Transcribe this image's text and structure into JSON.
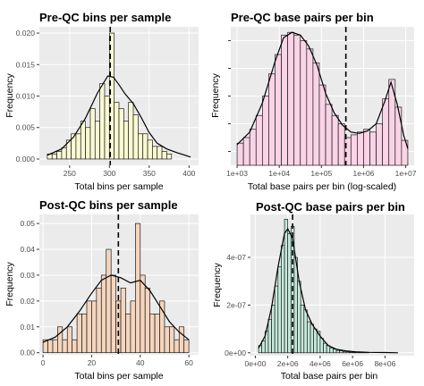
{
  "colors": {
    "panel_bg": "#ebebeb",
    "grid_major": "#ffffff",
    "bar_stroke": "#1a1a1a",
    "density": "#000000",
    "mean_line": "#000000"
  },
  "chart_data": [
    {
      "type": "histogram",
      "title": "Pre-QC bins per sample",
      "xlabel": "Total bins per sample",
      "ylabel": "Frequency",
      "fill": "#fafad2",
      "xscale": "linear",
      "xlim": [
        212,
        412
      ],
      "ylim": [
        -0.001,
        0.021
      ],
      "xticks": [
        250,
        300,
        350,
        400
      ],
      "xtick_labels": [
        "250",
        "300",
        "350",
        "400"
      ],
      "yticks": [
        0,
        0.005,
        0.01,
        0.015,
        0.02
      ],
      "ytick_labels": [
        "0.000",
        "0.005",
        "0.010",
        "0.015",
        "0.020"
      ],
      "mean_line_x": 301,
      "bins": [
        [
          222,
          228,
          0.0008
        ],
        [
          228,
          234,
          0.0008
        ],
        [
          234,
          240,
          0.0012
        ],
        [
          240,
          246,
          0.0018
        ],
        [
          246,
          252,
          0.003
        ],
        [
          252,
          258,
          0.004
        ],
        [
          258,
          264,
          0.004
        ],
        [
          264,
          270,
          0.006
        ],
        [
          270,
          276,
          0.005
        ],
        [
          276,
          282,
          0.008
        ],
        [
          282,
          288,
          0.006
        ],
        [
          288,
          294,
          0.012
        ],
        [
          294,
          300,
          0.01
        ],
        [
          300,
          306,
          0.02
        ],
        [
          306,
          312,
          0.009
        ],
        [
          312,
          318,
          0.008
        ],
        [
          318,
          324,
          0.006
        ],
        [
          324,
          330,
          0.009
        ],
        [
          330,
          336,
          0.007
        ],
        [
          336,
          342,
          0.004
        ],
        [
          342,
          348,
          0.004
        ],
        [
          348,
          354,
          0.003
        ],
        [
          354,
          360,
          0.002
        ],
        [
          360,
          366,
          0.002
        ],
        [
          366,
          372,
          0.0012
        ],
        [
          372,
          378,
          0.0008
        ]
      ],
      "density": [
        [
          222,
          0.0006
        ],
        [
          240,
          0.0016
        ],
        [
          255,
          0.0035
        ],
        [
          270,
          0.0065
        ],
        [
          285,
          0.0105
        ],
        [
          298,
          0.0132
        ],
        [
          305,
          0.013
        ],
        [
          312,
          0.0118
        ],
        [
          320,
          0.0103
        ],
        [
          330,
          0.0088
        ],
        [
          340,
          0.0066
        ],
        [
          350,
          0.0042
        ],
        [
          360,
          0.0025
        ],
        [
          372,
          0.0016
        ],
        [
          385,
          0.001
        ],
        [
          395,
          0.0006
        ],
        [
          402,
          0.0003
        ]
      ]
    },
    {
      "type": "histogram",
      "title": "Pre-QC base pairs per bin",
      "xlabel": "Total base pairs per bin (log-scaled)",
      "ylabel": "Frequency",
      "fill": "#fad3e6",
      "xscale": "log10",
      "xlim": [
        2.85,
        7.2
      ],
      "ylim": [
        0,
        1
      ],
      "xticks": [
        3,
        4,
        5,
        6,
        7
      ],
      "xtick_labels": [
        "1e+03",
        "1e+04",
        "1e+05",
        "1e+06",
        "1e+07"
      ],
      "yticks": [
        0.1,
        0.3,
        0.5,
        0.7,
        0.9
      ],
      "ytick_labels": [
        "",
        "",
        "",
        "",
        ""
      ],
      "mean_line_x": 5.58,
      "bins": [
        [
          3.0,
          3.15,
          0.16
        ],
        [
          3.15,
          3.3,
          0.2
        ],
        [
          3.3,
          3.45,
          0.26
        ],
        [
          3.45,
          3.6,
          0.36
        ],
        [
          3.6,
          3.75,
          0.5
        ],
        [
          3.75,
          3.9,
          0.66
        ],
        [
          3.9,
          4.05,
          0.8
        ],
        [
          4.05,
          4.2,
          0.94
        ],
        [
          4.2,
          4.35,
          0.96
        ],
        [
          4.35,
          4.5,
          0.94
        ],
        [
          4.5,
          4.65,
          0.9
        ],
        [
          4.65,
          4.8,
          0.84
        ],
        [
          4.8,
          4.95,
          0.74
        ],
        [
          4.95,
          5.1,
          0.58
        ],
        [
          5.1,
          5.25,
          0.44
        ],
        [
          5.25,
          5.4,
          0.36
        ],
        [
          5.4,
          5.55,
          0.3
        ],
        [
          5.55,
          5.7,
          0.2
        ],
        [
          5.7,
          5.85,
          0.22
        ],
        [
          5.85,
          6.0,
          0.24
        ],
        [
          6.0,
          6.15,
          0.26
        ],
        [
          6.15,
          6.3,
          0.24
        ],
        [
          6.3,
          6.45,
          0.3
        ],
        [
          6.45,
          6.6,
          0.48
        ],
        [
          6.6,
          6.75,
          0.62
        ],
        [
          6.75,
          6.9,
          0.42
        ],
        [
          6.9,
          7.05,
          0.18
        ]
      ],
      "density": [
        [
          3.0,
          0.15
        ],
        [
          3.3,
          0.24
        ],
        [
          3.6,
          0.45
        ],
        [
          3.9,
          0.75
        ],
        [
          4.1,
          0.92
        ],
        [
          4.3,
          0.96
        ],
        [
          4.5,
          0.94
        ],
        [
          4.7,
          0.86
        ],
        [
          4.9,
          0.72
        ],
        [
          5.1,
          0.52
        ],
        [
          5.3,
          0.38
        ],
        [
          5.5,
          0.29
        ],
        [
          5.7,
          0.24
        ],
        [
          5.9,
          0.23
        ],
        [
          6.1,
          0.25
        ],
        [
          6.3,
          0.3
        ],
        [
          6.5,
          0.46
        ],
        [
          6.65,
          0.6
        ],
        [
          6.8,
          0.44
        ],
        [
          6.95,
          0.22
        ],
        [
          7.05,
          0.12
        ]
      ]
    },
    {
      "type": "histogram",
      "title": "Post-QC bins per sample",
      "xlabel": "Total bins per sample",
      "ylabel": "Frequency",
      "fill": "#f5d5bd",
      "xscale": "linear",
      "xlim": [
        -1.5,
        64
      ],
      "ylim": [
        -0.0008,
        0.0535
      ],
      "xticks": [
        0,
        20,
        40,
        60
      ],
      "xtick_labels": [
        "0",
        "20",
        "40",
        "60"
      ],
      "yticks": [
        0,
        0.01,
        0.02,
        0.03,
        0.04,
        0.05
      ],
      "ytick_labels": [
        "0.00",
        "0.01",
        "0.02",
        "0.03",
        "0.04",
        "0.05"
      ],
      "mean_line_x": 31,
      "bins": [
        [
          0,
          2,
          0.005
        ],
        [
          2,
          4,
          0.005
        ],
        [
          4,
          6,
          0.005
        ],
        [
          6,
          8,
          0.01
        ],
        [
          8,
          10,
          0.005
        ],
        [
          10,
          12,
          0.01
        ],
        [
          12,
          14,
          0.005
        ],
        [
          14,
          16,
          0.015
        ],
        [
          16,
          18,
          0.015
        ],
        [
          18,
          20,
          0.02
        ],
        [
          20,
          22,
          0.02
        ],
        [
          22,
          24,
          0.025
        ],
        [
          24,
          26,
          0.03
        ],
        [
          26,
          28,
          0.04
        ],
        [
          28,
          30,
          0.03
        ],
        [
          30,
          32,
          0.02
        ],
        [
          32,
          34,
          0.025
        ],
        [
          34,
          36,
          0.015
        ],
        [
          36,
          38,
          0.02
        ],
        [
          38,
          40,
          0.05
        ],
        [
          40,
          42,
          0.03
        ],
        [
          42,
          44,
          0.025
        ],
        [
          44,
          46,
          0.015
        ],
        [
          46,
          48,
          0.015
        ],
        [
          48,
          50,
          0.02
        ],
        [
          50,
          52,
          0.01
        ],
        [
          52,
          54,
          0.01
        ],
        [
          54,
          56,
          0.005
        ],
        [
          56,
          58,
          0.01
        ],
        [
          58,
          60,
          0.005
        ]
      ],
      "density": [
        [
          0,
          0.004
        ],
        [
          5,
          0.006
        ],
        [
          10,
          0.01
        ],
        [
          15,
          0.016
        ],
        [
          20,
          0.023
        ],
        [
          24,
          0.028
        ],
        [
          28,
          0.03
        ],
        [
          32,
          0.029
        ],
        [
          36,
          0.027
        ],
        [
          40,
          0.028
        ],
        [
          44,
          0.024
        ],
        [
          48,
          0.018
        ],
        [
          52,
          0.012
        ],
        [
          56,
          0.008
        ],
        [
          60,
          0.005
        ]
      ]
    },
    {
      "type": "histogram",
      "title": "Post-QC base pairs per bin",
      "xlabel": "Total base pairs per bin",
      "ylabel": "Frequency",
      "fill": "#c6ebdd",
      "xscale": "linear",
      "xlim": [
        -300000,
        9800000
      ],
      "ylim": [
        -1.2e-08,
        5.8e-07
      ],
      "xticks": [
        0,
        2000000,
        4000000,
        6000000,
        8000000
      ],
      "xtick_labels": [
        "0e+00",
        "2e+06",
        "4e+06",
        "6e+06",
        "8e+06"
      ],
      "yticks": [
        0,
        2e-07,
        4e-07
      ],
      "ytick_labels": [
        "0e+00",
        "2e-07",
        "4e-07"
      ],
      "mean_line_x": 2300000,
      "bins": [
        [
          200000,
          400000,
          3e-08
        ],
        [
          400000,
          600000,
          5e-08
        ],
        [
          600000,
          800000,
          9e-08
        ],
        [
          800000,
          1000000,
          1.4e-07
        ],
        [
          1000000,
          1200000,
          2e-07
        ],
        [
          1200000,
          1400000,
          2.8e-07
        ],
        [
          1400000,
          1600000,
          3.6e-07
        ],
        [
          1600000,
          1800000,
          4.5e-07
        ],
        [
          1800000,
          2000000,
          5.6e-07
        ],
        [
          2000000,
          2200000,
          5e-07
        ],
        [
          2200000,
          2400000,
          5.3e-07
        ],
        [
          2400000,
          2600000,
          4e-07
        ],
        [
          2600000,
          2800000,
          3e-07
        ],
        [
          2800000,
          3000000,
          2e-07
        ],
        [
          3000000,
          3200000,
          1.8e-07
        ],
        [
          3200000,
          3400000,
          1.3e-07
        ],
        [
          3400000,
          3600000,
          1.2e-07
        ],
        [
          3600000,
          3800000,
          1e-07
        ],
        [
          3800000,
          4000000,
          9e-08
        ],
        [
          4000000,
          4200000,
          6e-08
        ],
        [
          4200000,
          4400000,
          4e-08
        ],
        [
          4400000,
          4600000,
          3e-08
        ],
        [
          4600000,
          4800000,
          2e-08
        ],
        [
          4800000,
          5000000,
          1.5e-08
        ],
        [
          5000000,
          5200000,
          1e-08
        ],
        [
          5200000,
          5400000,
          8e-09
        ],
        [
          5400000,
          5600000,
          5e-09
        ],
        [
          5600000,
          5800000,
          4e-09
        ],
        [
          5800000,
          6000000,
          3e-09
        ],
        [
          6000000,
          6200000,
          2e-09
        ],
        [
          6200000,
          6400000,
          1.5e-09
        ],
        [
          6400000,
          6600000,
          1e-09
        ],
        [
          6600000,
          6800000,
          1e-09
        ],
        [
          6800000,
          7000000,
          8e-10
        ]
      ],
      "density": [
        [
          200000,
          2e-08
        ],
        [
          600000,
          7e-08
        ],
        [
          1000000,
          1.9e-07
        ],
        [
          1400000,
          3.6e-07
        ],
        [
          1800000,
          5e-07
        ],
        [
          2000000,
          5.2e-07
        ],
        [
          2300000,
          4.8e-07
        ],
        [
          2700000,
          3e-07
        ],
        [
          3100000,
          1.8e-07
        ],
        [
          3500000,
          1.2e-07
        ],
        [
          4000000,
          7e-08
        ],
        [
          4500000,
          3e-08
        ],
        [
          5000000,
          1.5e-08
        ],
        [
          5600000,
          8e-09
        ],
        [
          6200000,
          4e-09
        ],
        [
          7000000,
          2e-09
        ],
        [
          8000000,
          1e-09
        ],
        [
          8800000,
          0
        ]
      ]
    }
  ]
}
